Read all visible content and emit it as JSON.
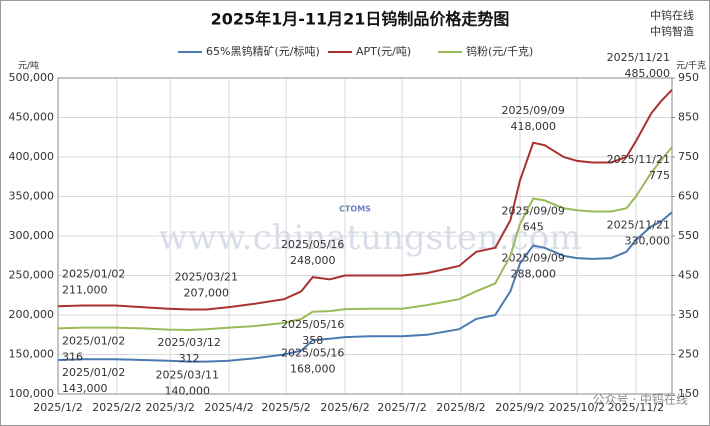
{
  "chart_data": {
    "type": "line",
    "title": "2025年1月-11月21日钨制品价格走势图",
    "y_unit": "元/吨",
    "y2_unit": "元/千克",
    "watermarks": [
      "中钨在线",
      "中钨智造",
      "www.chinatungsten.com",
      "CTOMS",
      "公众号 · 中钨在线"
    ],
    "x": [
      "2025/1/2",
      "2025/1/15",
      "2025/2/1",
      "2025/2/15",
      "2025/3/1",
      "2025/3/12",
      "2025/3/21",
      "2025/4/2",
      "2025/4/15",
      "2025/5/1",
      "2025/5/10",
      "2025/5/16",
      "2025/5/25",
      "2025/6/2",
      "2025/6/15",
      "2025/7/2",
      "2025/7/15",
      "2025/8/1",
      "2025/8/10",
      "2025/8/20",
      "2025/8/28",
      "2025/9/2",
      "2025/9/9",
      "2025/9/15",
      "2025/9/25",
      "2025/10/2",
      "2025/10/10",
      "2025/10/20",
      "2025/10/28",
      "2025/11/2",
      "2025/11/10",
      "2025/11/15",
      "2025/11/21"
    ],
    "xlim": [
      "2025/1/2",
      "2025/11/21"
    ],
    "xticks": [
      "2025/1/2",
      "2025/2/2",
      "2025/3/2",
      "2025/4/2",
      "2025/5/2",
      "2025/6/2",
      "2025/7/2",
      "2025/8/2",
      "2025/9/2",
      "2025/10/2",
      "2025/11/2"
    ],
    "ylim": [
      100000,
      500000
    ],
    "yticks": [
      {
        "value": 100000,
        "label": "100,000"
      },
      {
        "value": 150000,
        "label": "150,000"
      },
      {
        "value": 200000,
        "label": "200,000"
      },
      {
        "value": 250000,
        "label": "250,000"
      },
      {
        "value": 300000,
        "label": "300,000"
      },
      {
        "value": 350000,
        "label": "350,000"
      },
      {
        "value": 400000,
        "label": "400,000"
      },
      {
        "value": 450000,
        "label": "450,000"
      },
      {
        "value": 500000,
        "label": "500,000"
      }
    ],
    "y2lim": [
      150,
      950
    ],
    "y2ticks": [
      150,
      250,
      350,
      450,
      550,
      650,
      750,
      850,
      950
    ],
    "grid": true,
    "series": [
      {
        "name": "65%黑钨精矿(元/标吨)",
        "color": "#4a7bb0",
        "values": [
          143000,
          144000,
          144000,
          143000,
          142000,
          141000,
          141000,
          142000,
          145000,
          150000,
          155000,
          168000,
          170000,
          172000,
          173000,
          173000,
          175000,
          182000,
          195000,
          200000,
          230000,
          265000,
          288000,
          285000,
          275000,
          272000,
          271000,
          272000,
          280000,
          295000,
          312000,
          318000,
          330000
        ],
        "annotations": [
          {
            "date": "2025/01/02",
            "value": 143000,
            "label": "143,000"
          },
          {
            "date": "2025/03/11",
            "value": 140000,
            "label": "140,000"
          },
          {
            "date": "2025/05/16",
            "value": 168000,
            "label": "168,000"
          },
          {
            "date": "2025/09/09",
            "value": 288000,
            "label": "288,000"
          },
          {
            "date": "2025/11/21",
            "value": 330000,
            "label": "330,000"
          }
        ]
      },
      {
        "name": "APT(元/吨)",
        "color": "#a83232",
        "values": [
          211000,
          212000,
          212000,
          210000,
          208000,
          207000,
          207000,
          210000,
          214000,
          220000,
          230000,
          248000,
          245000,
          250000,
          250000,
          250000,
          253000,
          262000,
          280000,
          285000,
          320000,
          370000,
          418000,
          415000,
          400000,
          395000,
          393000,
          393000,
          400000,
          420000,
          455000,
          470000,
          485000
        ],
        "annotations": [
          {
            "date": "2025/01/02",
            "value": 211000,
            "label": "211,000"
          },
          {
            "date": "2025/03/21",
            "value": 207000,
            "label": "207,000"
          },
          {
            "date": "2025/05/16",
            "value": 248000,
            "label": "248,000"
          },
          {
            "date": "2025/09/09",
            "value": 418000,
            "label": "418,000"
          },
          {
            "date": "2025/11/21",
            "value": 485000,
            "label": "485,000"
          }
        ]
      },
      {
        "name": "钨粉(元/千克)",
        "color": "#9bbb59",
        "axis": "y2",
        "values": [
          316,
          318,
          318,
          316,
          313,
          312,
          314,
          318,
          322,
          330,
          340,
          358,
          360,
          365,
          366,
          366,
          375,
          390,
          410,
          430,
          500,
          580,
          645,
          640,
          620,
          615,
          612,
          612,
          620,
          650,
          710,
          740,
          775
        ],
        "annotations": [
          {
            "date": "2025/01/02",
            "value": 316,
            "label": "316"
          },
          {
            "date": "2025/03/12",
            "value": 312,
            "label": "312"
          },
          {
            "date": "2025/05/16",
            "value": 358,
            "label": "358"
          },
          {
            "date": "2025/09/09",
            "value": 645,
            "label": "645"
          },
          {
            "date": "2025/11/21",
            "value": 775,
            "label": "775"
          }
        ]
      }
    ]
  }
}
